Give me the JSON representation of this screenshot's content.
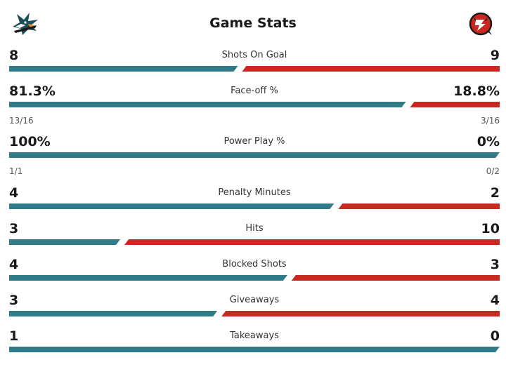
{
  "header": {
    "title": "Game Stats",
    "home_logo_icon": "sharks-logo-icon",
    "away_logo_icon": "devils-logo-icon"
  },
  "colors": {
    "home": "#2f7b87",
    "away": "#c8281f"
  },
  "stats": [
    {
      "label": "Shots On Goal",
      "home": "8",
      "away": "9",
      "home_share": 0.4706
    },
    {
      "label": "Face-off %",
      "home": "81.3%",
      "away": "18.8%",
      "home_sub": "13/16",
      "away_sub": "3/16",
      "home_share": 0.813
    },
    {
      "label": "Power Play %",
      "home": "100%",
      "away": "0%",
      "home_sub": "1/1",
      "away_sub": "0/2",
      "home_share": 1.0
    },
    {
      "label": "Penalty Minutes",
      "home": "4",
      "away": "2",
      "home_share": 0.6667
    },
    {
      "label": "Hits",
      "home": "3",
      "away": "10",
      "home_share": 0.2308
    },
    {
      "label": "Blocked Shots",
      "home": "4",
      "away": "3",
      "home_share": 0.5714
    },
    {
      "label": "Giveaways",
      "home": "3",
      "away": "4",
      "home_share": 0.4286
    },
    {
      "label": "Takeaways",
      "home": "1",
      "away": "0",
      "home_share": 1.0
    }
  ]
}
